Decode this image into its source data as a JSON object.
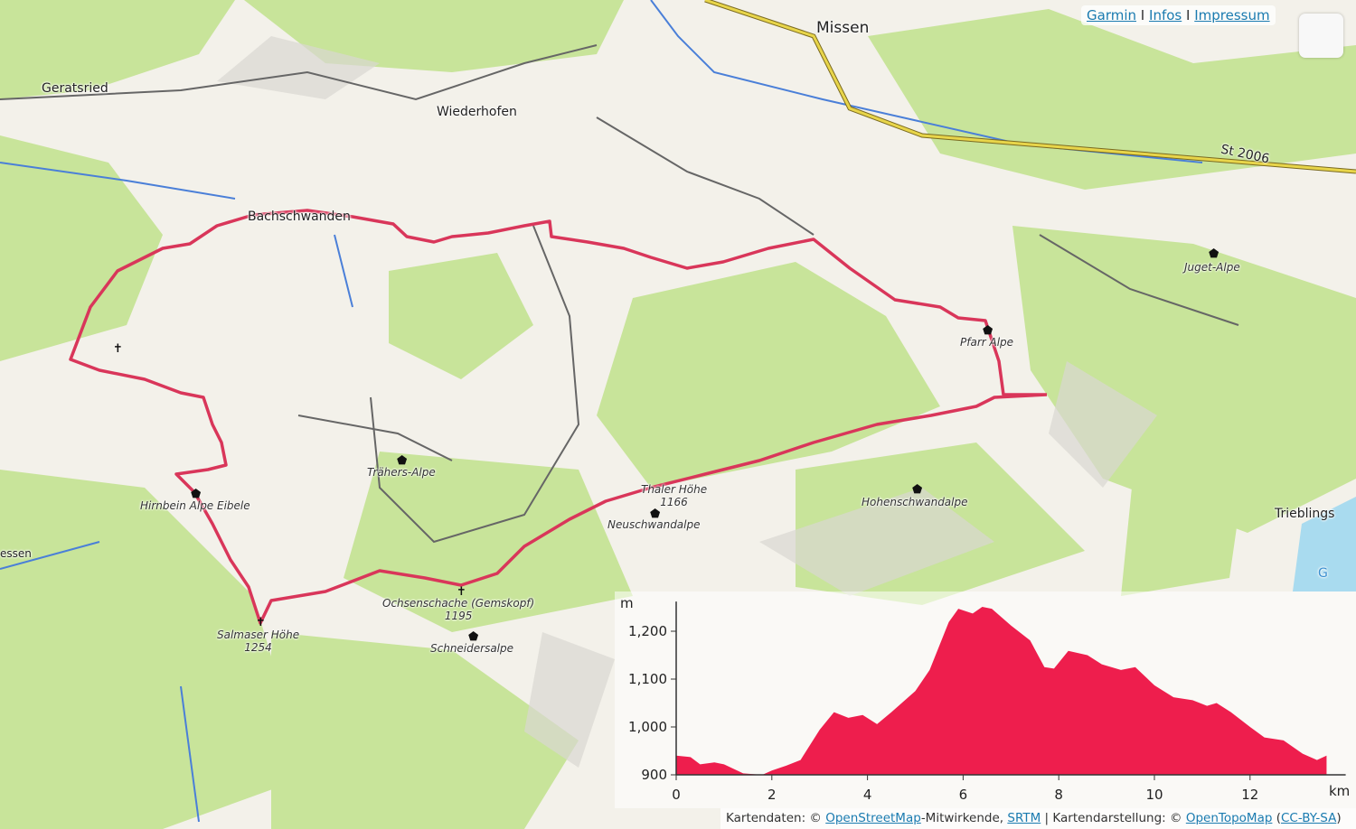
{
  "header_links": [
    {
      "label": "Garmin"
    },
    {
      "label": "Infos"
    },
    {
      "label": "Impressum"
    }
  ],
  "separator": "I",
  "icons": {
    "map_button": "layers-button-icon",
    "peak": "summit-cross-icon",
    "hut": "alpine-hut-icon"
  },
  "colors": {
    "route": "#d9365a",
    "profile_fill": "#ee1e4d",
    "forest": "#c8e49a",
    "water": "#a9dbef",
    "main_road": "#e8d54a"
  },
  "map_labels": {
    "missen": "Missen",
    "geratsried": "Geratsried",
    "wiederhofen": "Wiederhofen",
    "bachschwanden": "Bachschwanden",
    "juget_alpe": "Juget-Alpe",
    "pfarr_alpe": "Pfarr Alpe",
    "traehers_alpe": "Trähers-Alpe",
    "hirnbein": "Hirnbein Alpe Eibele",
    "thaler_hoehe": "Thaler Höhe",
    "thaler_hoehe_ele": "1166",
    "neuschwandalpe": "Neuschwandalpe",
    "hohenschwandalpe": "Hohenschwandalpe",
    "trieblings": "Trieblings",
    "ochsenschache": "Ochsenschache (Gemskopf)",
    "ochsenschache_ele": "1195",
    "salmaser": "Salmaser Höhe",
    "salmaser_ele": "1254",
    "schneidersalpe": "Schneidersalpe",
    "st2006": "St 2006",
    "essen": "essen",
    "lake_g": "G"
  },
  "chart_data": {
    "type": "area",
    "xlabel": "km",
    "ylabel": "m",
    "xlim": [
      0,
      14
    ],
    "ylim": [
      900,
      1260
    ],
    "xticks": [
      "0",
      "2",
      "4",
      "6",
      "8",
      "10",
      "12"
    ],
    "yticks": [
      "900",
      "1,000",
      "1,100",
      "1,200"
    ],
    "grid": false,
    "x": [
      0,
      0.3,
      0.5,
      0.8,
      1.0,
      1.4,
      1.8,
      2.0,
      2.3,
      2.6,
      3.0,
      3.3,
      3.6,
      3.9,
      4.2,
      4.5,
      5.0,
      5.3,
      5.7,
      5.9,
      6.2,
      6.4,
      6.6,
      7.0,
      7.4,
      7.7,
      7.9,
      8.2,
      8.6,
      8.9,
      9.3,
      9.6,
      10.0,
      10.4,
      10.8,
      11.1,
      11.3,
      11.6,
      12.0,
      12.3,
      12.7,
      13.1,
      13.4,
      13.6
    ],
    "y": [
      940,
      937,
      922,
      926,
      922,
      903,
      900,
      909,
      919,
      931,
      994,
      1031,
      1019,
      1025,
      1006,
      1031,
      1075,
      1119,
      1219,
      1247,
      1237,
      1251,
      1247,
      1212,
      1181,
      1125,
      1122,
      1159,
      1150,
      1131,
      1119,
      1125,
      1087,
      1062,
      1056,
      1044,
      1050,
      1031,
      1000,
      978,
      972,
      944,
      931,
      940
    ]
  },
  "attribution": {
    "prefix": "Kartendaten: © ",
    "osm": "OpenStreetMap",
    "mid1": "-Mitwirkende, ",
    "srtm": "SRTM",
    "mid2": " | Kartendarstellung: © ",
    "otm": "OpenTopoMap",
    "open": " (",
    "license": "CC-BY-SA",
    "close": ")"
  }
}
